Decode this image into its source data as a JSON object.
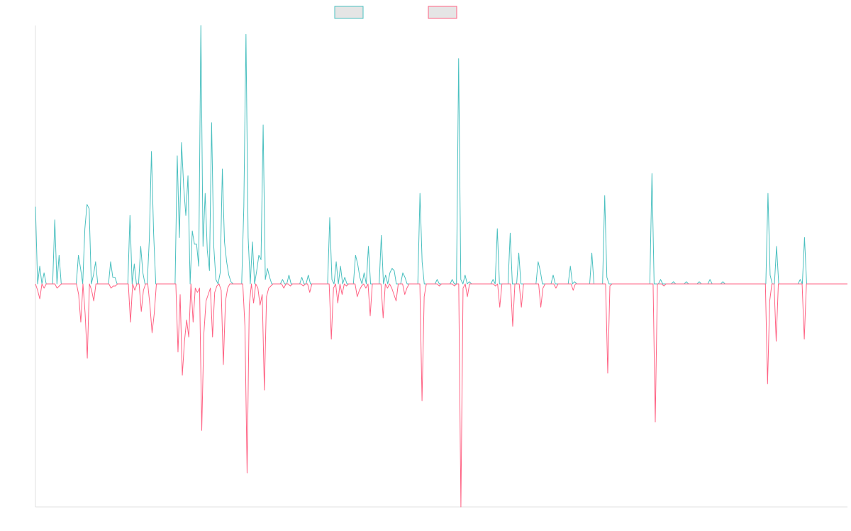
{
  "colors": {
    "series_up": "#4bc0c0",
    "series_down": "#ff6384",
    "legend_fill": "#e5e5e5",
    "axis": "#e0e0e0"
  },
  "chart_data": {
    "type": "line",
    "title": "",
    "xlabel": "",
    "ylabel": "",
    "grid": false,
    "legend_position": "top-center",
    "ylim": [
      -1,
      1
    ],
    "series": [
      {
        "values": [
          0.35,
          0,
          0.08,
          0,
          0.05,
          0,
          0,
          0,
          0,
          0.29,
          0,
          0.13,
          0,
          0,
          0,
          0,
          0,
          0,
          0,
          0,
          0.13,
          0.07,
          0,
          0.25,
          0.36,
          0.34,
          0,
          0.04,
          0.1,
          0,
          0,
          0,
          0,
          0,
          0,
          0.1,
          0.03,
          0.03,
          0,
          0,
          0,
          0,
          0,
          0,
          0.31,
          0,
          0.09,
          0,
          0,
          0.17,
          0.05,
          0,
          0,
          0.2,
          0.6,
          0.23,
          0,
          0,
          0,
          0,
          0,
          0,
          0,
          0,
          0,
          0,
          0.58,
          0.21,
          0.64,
          0.44,
          0.31,
          0.49,
          0,
          0.24,
          0.18,
          0.18,
          0.08,
          1.17,
          0.17,
          0.41,
          0.15,
          0.06,
          0.73,
          0.17,
          0.02,
          0,
          0.05,
          0.52,
          0.19,
          0.1,
          0.04,
          0.01,
          0,
          0,
          0,
          0,
          0,
          0.35,
          1.13,
          0.21,
          0,
          0.19,
          0,
          0.06,
          0.13,
          0.11,
          0.72,
          0.02,
          0.07,
          0.03,
          0,
          0,
          0,
          0,
          0,
          0.02,
          0,
          0,
          0.04,
          0,
          0,
          0,
          0,
          0,
          0.03,
          0,
          0,
          0.04,
          0,
          0,
          0,
          0,
          0,
          0,
          0,
          0,
          0,
          0.3,
          0.02,
          0,
          0.1,
          0,
          0.08,
          0,
          0.03,
          0,
          0,
          0,
          0,
          0.13,
          0.09,
          0.03,
          0,
          0.05,
          0,
          0.17,
          0,
          0,
          0,
          0,
          0,
          0.22,
          0,
          0.04,
          0,
          0.05,
          0.07,
          0.06,
          0,
          0,
          0,
          0.05,
          0.03,
          0,
          0,
          0,
          0,
          0,
          0,
          0.41,
          0.1,
          0,
          0,
          0,
          0,
          0,
          0,
          0.02,
          0,
          0,
          0,
          0,
          0,
          0,
          0.02,
          0,
          0,
          1.02,
          0.02,
          0,
          0.04,
          0,
          0.01,
          0,
          0,
          0,
          0,
          0,
          0,
          0,
          0,
          0,
          0,
          0.02,
          0,
          0.25,
          0,
          0,
          0,
          0,
          0,
          0.23,
          0,
          0,
          0,
          0.14,
          0,
          0,
          0,
          0,
          0,
          0,
          0,
          0,
          0.1,
          0.06,
          0,
          0,
          0,
          0,
          0,
          0.04,
          0,
          0,
          0,
          0,
          0,
          0,
          0,
          0.08,
          0,
          0.01,
          0,
          0,
          0,
          0,
          0,
          0,
          0,
          0.14,
          0,
          0,
          0,
          0,
          0,
          0.4,
          0.03,
          0,
          0,
          0,
          0,
          0,
          0,
          0,
          0,
          0,
          0,
          0,
          0,
          0,
          0,
          0,
          0,
          0,
          0,
          0,
          0,
          0.5,
          0,
          0,
          0,
          0.02,
          0,
          0,
          0,
          0,
          0,
          0.01,
          0,
          0,
          0,
          0,
          0,
          0.01,
          0,
          0,
          0,
          0,
          0,
          0.01,
          0,
          0,
          0,
          0,
          0.02,
          0,
          0,
          0,
          0,
          0,
          0.01,
          0,
          0,
          0,
          0,
          0,
          0,
          0,
          0,
          0,
          0,
          0,
          0,
          0,
          0,
          0,
          0,
          0,
          0,
          0,
          0,
          0.41,
          0.04,
          0,
          0,
          0.17,
          0,
          0,
          0,
          0,
          0,
          0,
          0,
          0,
          0,
          0,
          0.02,
          0,
          0.21,
          0,
          0,
          0,
          0,
          0,
          0,
          0,
          0,
          0,
          0,
          0,
          0,
          0,
          0,
          0,
          0,
          0,
          0,
          0,
          0
        ]
      },
      {
        "values": [
          0,
          -0.03,
          -0.07,
          0,
          -0.02,
          0,
          0,
          0,
          0,
          0,
          -0.02,
          -0.01,
          0,
          0,
          0,
          0,
          0,
          0,
          0,
          0,
          -0.05,
          -0.18,
          0,
          -0.14,
          -0.35,
          0,
          -0.03,
          -0.08,
          0,
          0,
          0,
          0,
          0,
          0,
          0,
          -0.02,
          -0.01,
          -0.01,
          0,
          0,
          0,
          0,
          0,
          0,
          -0.18,
          0,
          -0.03,
          0,
          0,
          -0.13,
          -0.03,
          0,
          0,
          -0.1,
          -0.23,
          -0.14,
          0,
          0,
          0,
          0,
          0,
          0,
          0,
          0,
          0,
          0,
          -0.32,
          -0.05,
          -0.43,
          -0.27,
          -0.17,
          -0.25,
          0,
          -0.18,
          -0.02,
          -0.04,
          -0.02,
          -0.69,
          -0.23,
          -0.08,
          -0.05,
          -0.02,
          -0.25,
          -0.04,
          -0.01,
          0,
          -0.03,
          -0.38,
          -0.08,
          -0.02,
          0,
          0,
          0,
          0,
          0,
          0,
          0,
          -0.2,
          -0.89,
          -0.1,
          0,
          -0.09,
          0,
          -0.02,
          -0.1,
          -0.05,
          -0.5,
          -0.06,
          -0.02,
          -0.01,
          0,
          0,
          0,
          0,
          0,
          -0.02,
          0,
          0,
          -0.01,
          0,
          0,
          0,
          0,
          0,
          -0.01,
          0,
          0,
          -0.04,
          0,
          0,
          0,
          0,
          0,
          0,
          0,
          0,
          0,
          -0.26,
          -0.02,
          0,
          -0.09,
          0,
          -0.05,
          0,
          -0.01,
          0,
          0,
          0,
          0,
          -0.06,
          -0.03,
          -0.01,
          0,
          -0.02,
          0,
          -0.15,
          0,
          0,
          0,
          0,
          0,
          -0.16,
          0,
          -0.02,
          0,
          -0.02,
          -0.05,
          -0.08,
          0,
          0,
          0,
          -0.05,
          -0.02,
          0,
          0,
          0,
          0,
          0,
          0,
          -0.55,
          -0.06,
          0,
          0,
          0,
          0,
          0,
          0,
          -0.01,
          0,
          0,
          0,
          0,
          0,
          0,
          -0.01,
          0,
          0,
          -1.05,
          -0.02,
          0,
          -0.06,
          0,
          0,
          0,
          0,
          0,
          0,
          0,
          0,
          0,
          0,
          0,
          0,
          -0.01,
          0,
          -0.11,
          0,
          0,
          0,
          0,
          0,
          -0.2,
          0,
          0,
          0,
          -0.11,
          0,
          0,
          0,
          0,
          0,
          0,
          0,
          0,
          -0.11,
          -0.02,
          0,
          0,
          0,
          0,
          0,
          -0.02,
          0,
          0,
          0,
          0,
          0,
          0,
          0,
          -0.03,
          0,
          0,
          0,
          0,
          0,
          0,
          0,
          0,
          0,
          0,
          0,
          0,
          0,
          0,
          0,
          -0.42,
          -0.01,
          0,
          0,
          0,
          0,
          0,
          0,
          0,
          0,
          0,
          0,
          0,
          0,
          0,
          0,
          0,
          0,
          0,
          0,
          0,
          0,
          -0.65,
          0,
          0,
          0,
          -0.01,
          0,
          0,
          0,
          0,
          0,
          0,
          0,
          0,
          0,
          0,
          0,
          0,
          0,
          0,
          0,
          0,
          0,
          0,
          0,
          0,
          0,
          0,
          0,
          0,
          0,
          0,
          0,
          0,
          0,
          0,
          0,
          0,
          0,
          0,
          0,
          0,
          0,
          0,
          0,
          0,
          0,
          0,
          0,
          0,
          0,
          0,
          0,
          -0.47,
          -0.08,
          0,
          0,
          -0.27,
          0,
          0,
          0,
          0,
          0,
          0,
          0,
          0,
          0,
          0,
          0,
          0,
          -0.26,
          0,
          0,
          0,
          0,
          0,
          0,
          0,
          0,
          0,
          0,
          0,
          0,
          0,
          0,
          0,
          0,
          0,
          0,
          0,
          0
        ]
      }
    ]
  }
}
